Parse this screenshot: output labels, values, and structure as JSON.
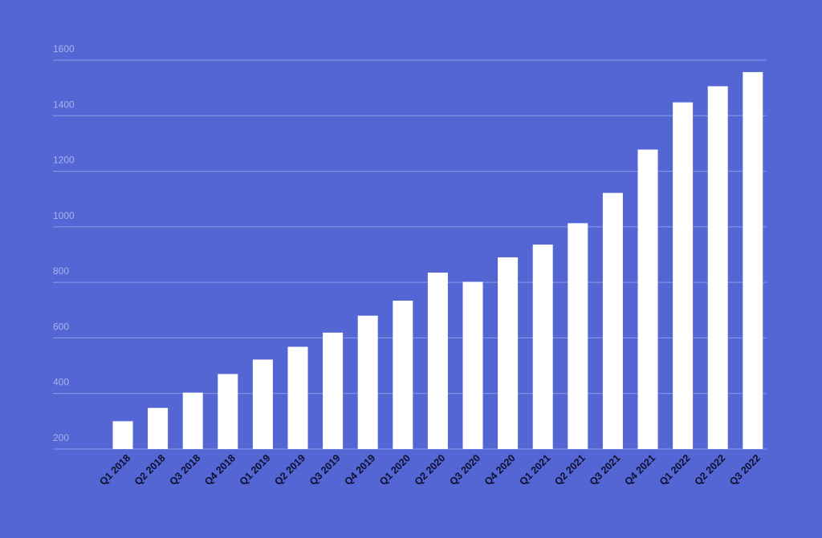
{
  "colors": {
    "background": "#5366d3",
    "bar": "#ffffff",
    "gridline": "#8e9be6",
    "y_tick_label": "#a9b3ee",
    "x_tick_label": "#0d0f2e"
  },
  "chart_data": {
    "type": "bar",
    "title": "",
    "xlabel": "",
    "ylabel": "",
    "ylim": [
      200,
      1600
    ],
    "yticks": [
      200,
      400,
      600,
      800,
      1000,
      1200,
      1400,
      1600
    ],
    "grid": true,
    "legend": "none",
    "categories": [
      "Q1 2018",
      "Q2 2018",
      "Q3 2018",
      "Q4 2018",
      "Q1 2019",
      "Q2 2019",
      "Q3 2019",
      "Q4 2019",
      "Q1 2020",
      "Q2 2020",
      "Q3 2020",
      "Q4 2020",
      "Q1 2021",
      "Q2 2021",
      "Q3 2021",
      "Q4 2021",
      "Q1 2022",
      "Q2 2022",
      "Q3 2022"
    ],
    "values": [
      300,
      348,
      403,
      470,
      522,
      568,
      619,
      680,
      734,
      835,
      802,
      890,
      936,
      1013,
      1122,
      1278,
      1448,
      1506,
      1557
    ]
  }
}
